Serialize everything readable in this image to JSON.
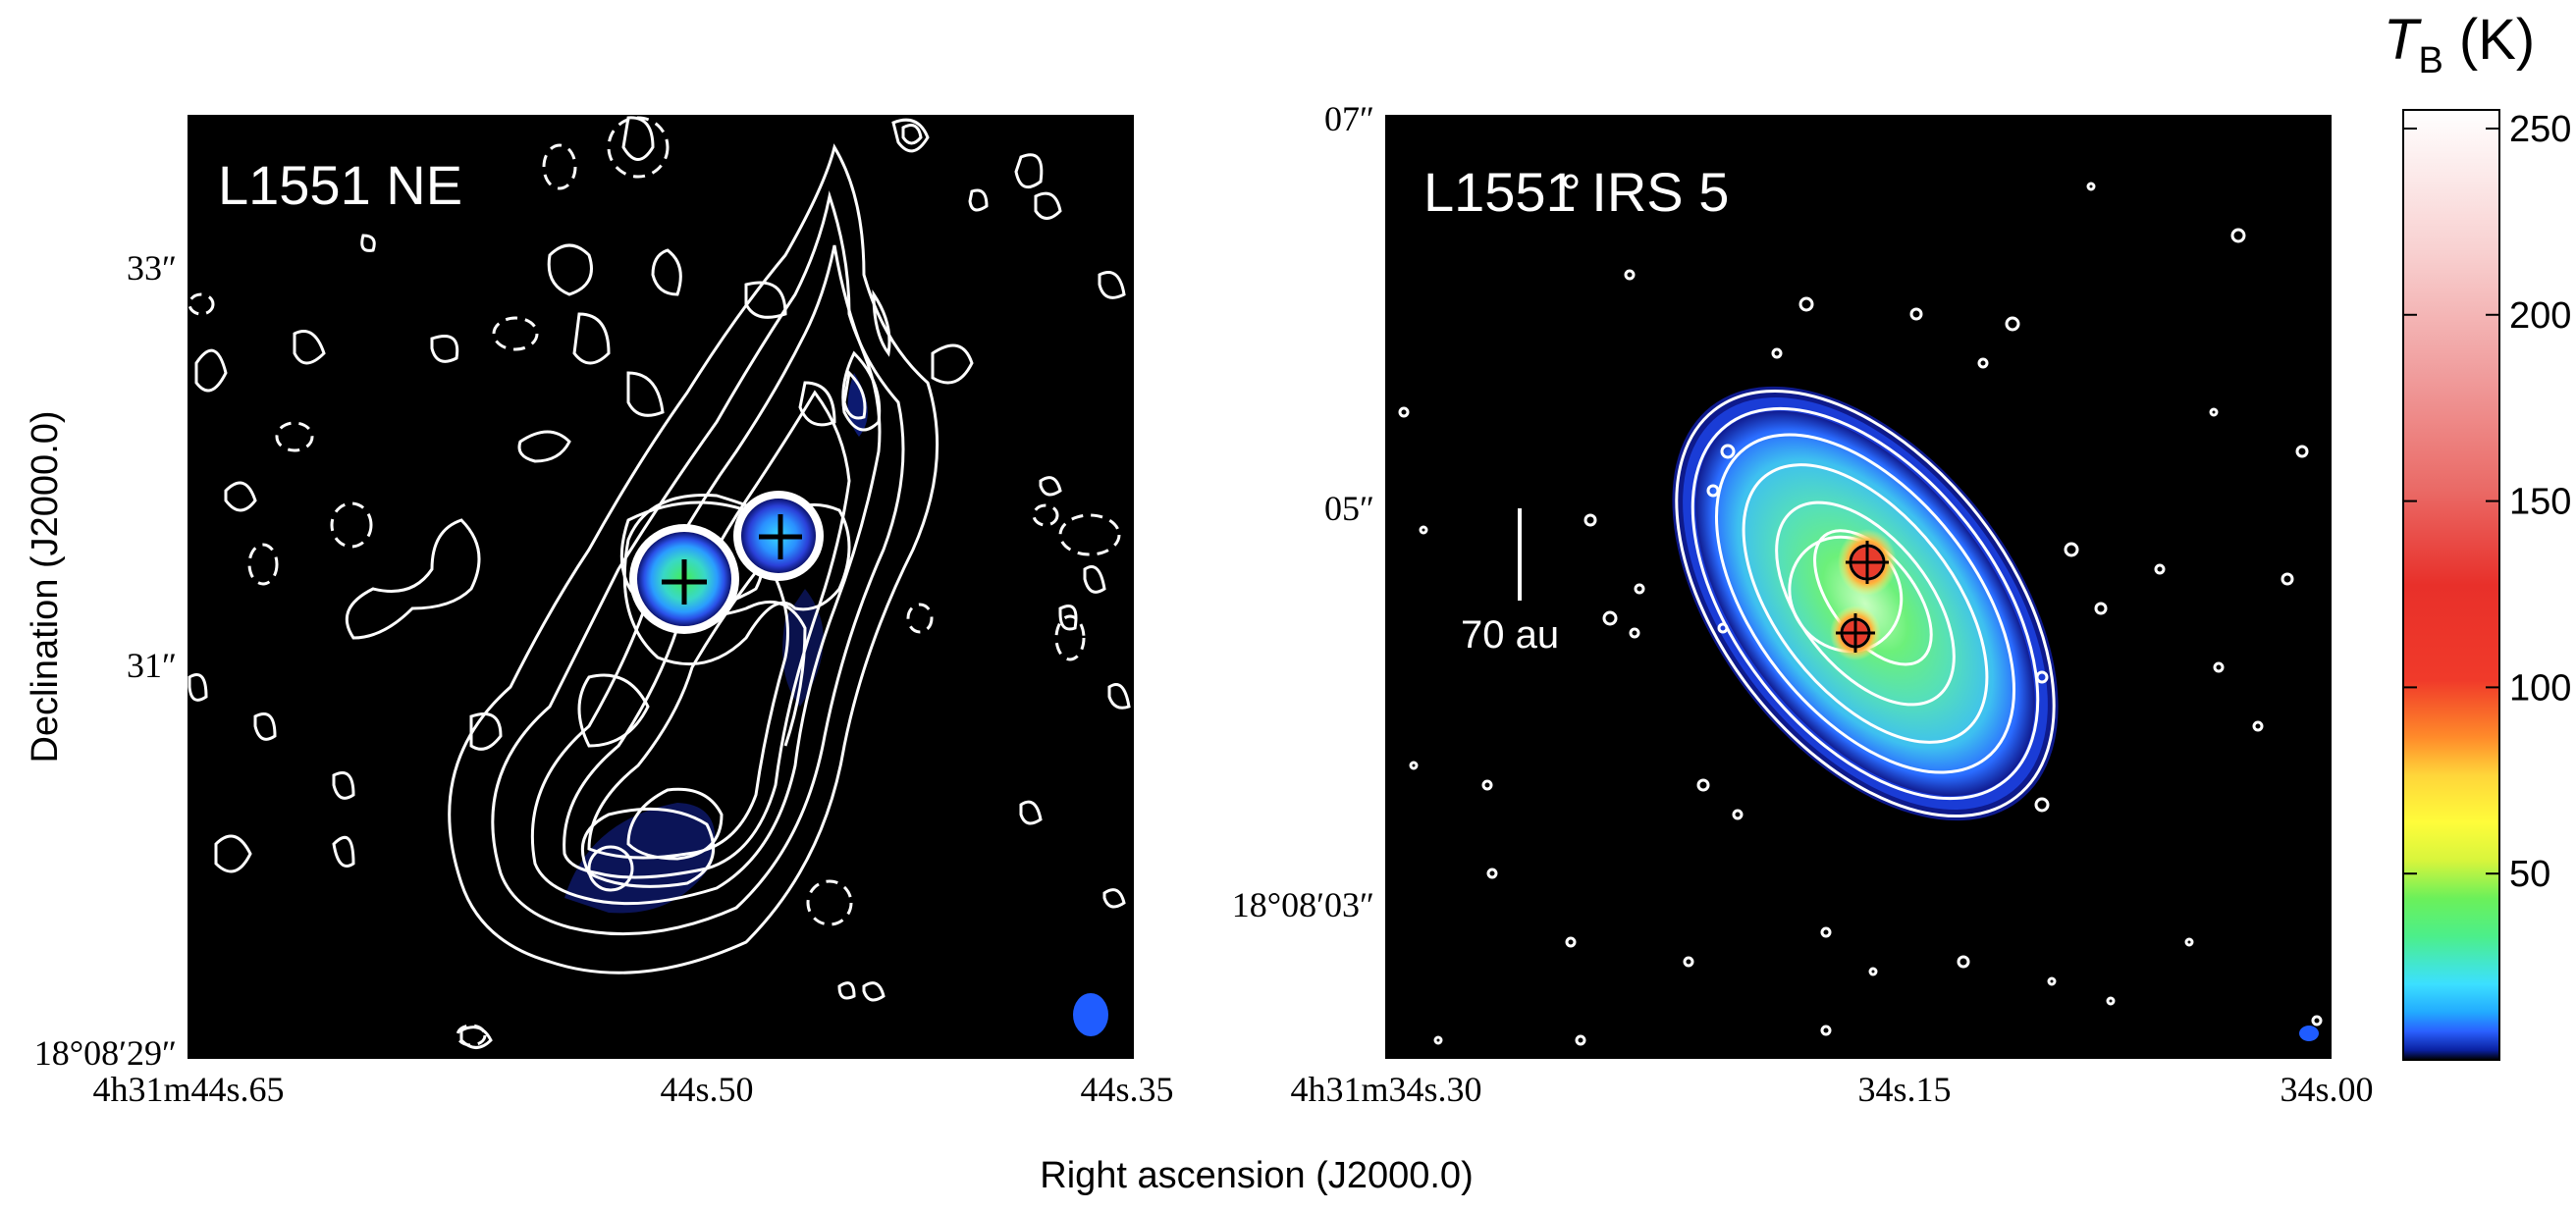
{
  "figure": {
    "x_axis_title": "Right ascension (J2000.0)",
    "y_axis_title": "Declination (J2000.0)"
  },
  "left_panel": {
    "title": "L1551 NE",
    "y_ticks": [
      "33″",
      "31″",
      "18°08′29″"
    ],
    "x_ticks": [
      "4h31m44s.65",
      "44s.50",
      "44s.35"
    ]
  },
  "right_panel": {
    "title": "L1551 IRS 5",
    "scale_bar_label": "70 au",
    "y_ticks": [
      "07″",
      "05″",
      "18°08′03″"
    ],
    "x_ticks": [
      "4h31m34s.30",
      "34s.15",
      "34s.00"
    ]
  },
  "colorbar": {
    "title_symbol": "T",
    "title_subscript": "B",
    "title_unit": " (K)",
    "ticks": [
      "250",
      "200",
      "150",
      "100",
      "50"
    ],
    "tick_values": [
      250,
      200,
      150,
      100,
      50
    ],
    "range": [
      0,
      255
    ]
  },
  "colors": {
    "background": "#000000",
    "contour": "#ffffff",
    "beam": "#1f5cff"
  }
}
